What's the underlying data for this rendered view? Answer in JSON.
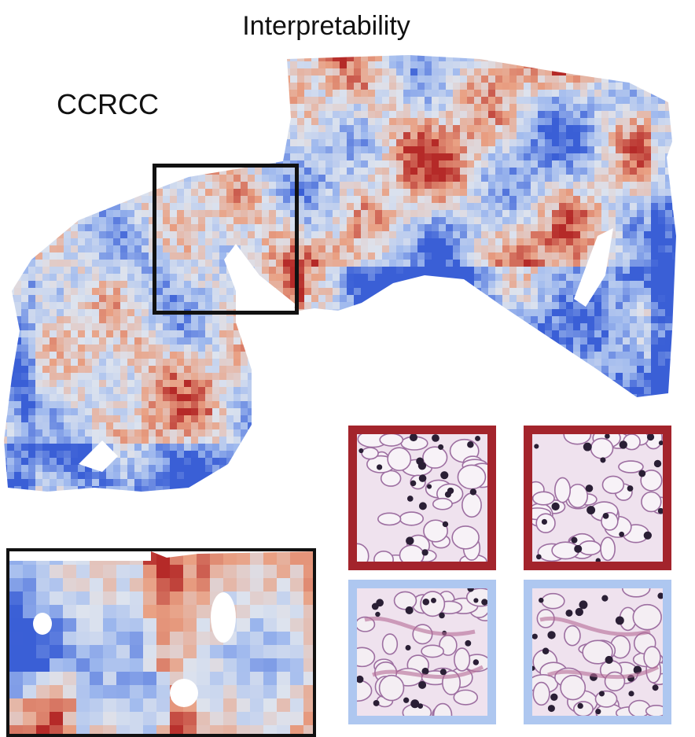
{
  "figure": {
    "title": "Interpretability",
    "panel_label": "CCRCC"
  },
  "colors": {
    "high_attention": "#b52a28",
    "mid_high": "#e9a083",
    "neutral": "#dde3ee",
    "mid_low": "#9fb9ee",
    "low_attention": "#3a5fd6",
    "high_tile_border": "#a3242c",
    "low_tile_border": "#aec7f0",
    "tissue_background": "#efe2ee",
    "nucleus": "#2a1f35"
  },
  "patches": [
    {
      "name": "high-attention-patch-1",
      "attention": "high"
    },
    {
      "name": "high-attention-patch-2",
      "attention": "high"
    },
    {
      "name": "low-attention-patch-1",
      "attention": "low"
    },
    {
      "name": "low-attention-patch-2",
      "attention": "low"
    }
  ]
}
